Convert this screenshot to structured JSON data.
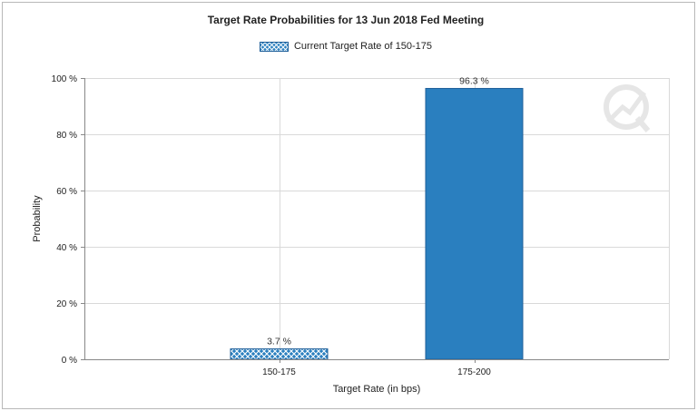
{
  "chart_data": {
    "type": "bar",
    "title": "Target Rate Probabilities for 13 Jun 2018 Fed Meeting",
    "xlabel": "Target Rate (in bps)",
    "ylabel": "Probability",
    "categories": [
      "150-175",
      "175-200"
    ],
    "values": [
      3.7,
      96.3
    ],
    "data_labels": [
      "3.7 %",
      "96.3 %"
    ],
    "ylim": [
      0,
      100
    ],
    "yticks": [
      0,
      20,
      40,
      60,
      80,
      100
    ],
    "ytick_labels": [
      "0 %",
      "20 %",
      "40 %",
      "60 %",
      "80 %",
      "100 %"
    ],
    "grid": true,
    "legend": {
      "position": "top-center",
      "entries": [
        {
          "name": "Current Target Rate of 150-175",
          "pattern": "crosshatch",
          "color": "#2a7fbf"
        }
      ]
    },
    "colors": {
      "current": "#2a7fbf",
      "other": "#2a7fbf"
    },
    "current_index": 0
  }
}
